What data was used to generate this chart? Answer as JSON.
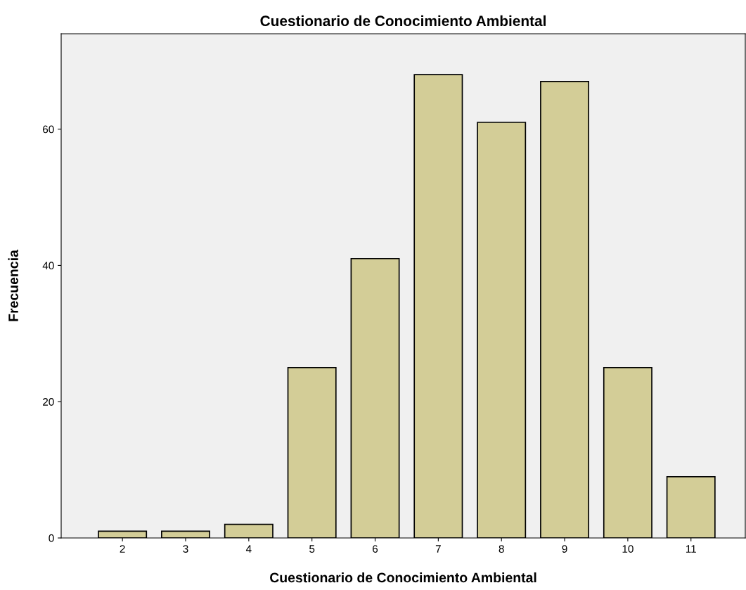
{
  "chart_data": {
    "type": "bar",
    "title": "Cuestionario de Conocimiento Ambiental",
    "xlabel": "Cuestionario de Conocimiento Ambiental",
    "ylabel": "Frecuencia",
    "categories": [
      "2",
      "3",
      "4",
      "5",
      "6",
      "7",
      "8",
      "9",
      "10",
      "11"
    ],
    "values": [
      1,
      1,
      2,
      25,
      41,
      68,
      61,
      67,
      25,
      9
    ],
    "color": "#d3cd97",
    "ylim": [
      0,
      74
    ],
    "yticks": [
      0,
      20,
      40,
      60
    ],
    "grid": false,
    "legend": false
  }
}
